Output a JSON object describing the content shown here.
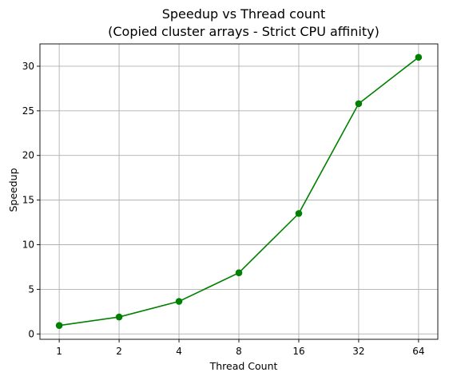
{
  "chart_data": {
    "type": "line",
    "title": "Speedup vs Thread count",
    "subtitle": "(Copied cluster arrays - Strict CPU affinity)",
    "xlabel": "Thread Count",
    "ylabel": "Speedup",
    "x_scale": "log2",
    "categories": [
      "1",
      "2",
      "4",
      "8",
      "16",
      "32",
      "64"
    ],
    "x": [
      1,
      2,
      4,
      8,
      16,
      32,
      64
    ],
    "series": [
      {
        "values": [
          0.95,
          1.9,
          3.65,
          6.85,
          13.5,
          25.8,
          31.0
        ],
        "color": "#008000",
        "marker": "circle"
      }
    ],
    "yticks": [
      0,
      5,
      10,
      15,
      20,
      25,
      30
    ],
    "xlim": [
      0.8,
      80
    ],
    "ylim": [
      -0.6,
      32.5
    ],
    "grid": true
  }
}
